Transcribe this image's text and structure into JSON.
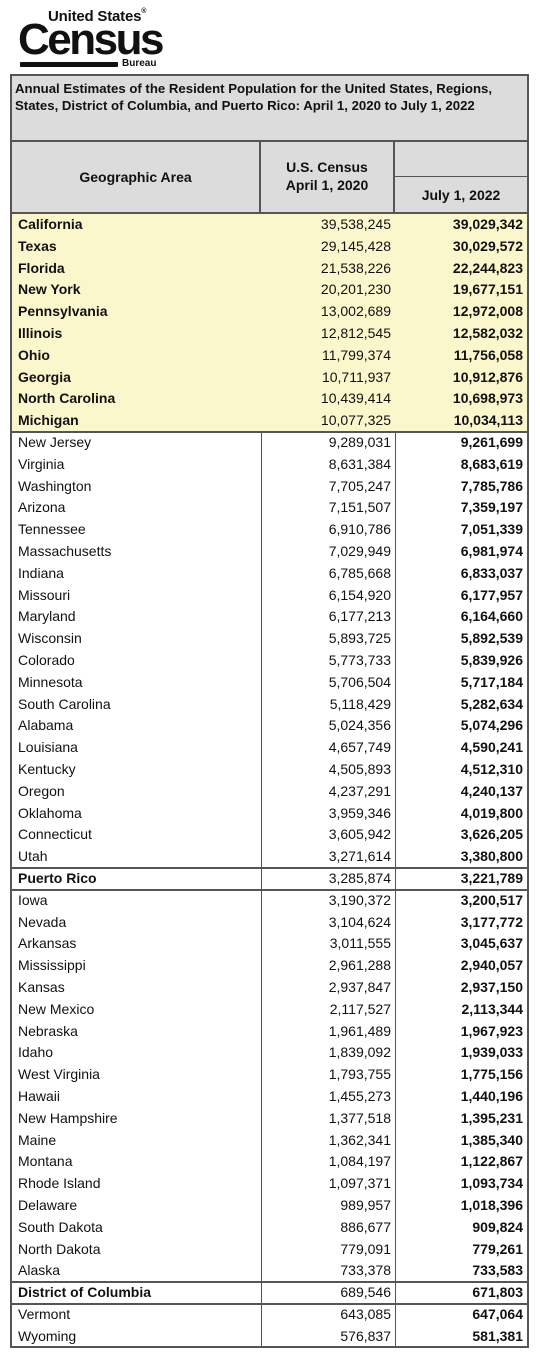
{
  "logo": {
    "line1": "United States",
    "reg": "®",
    "line2": "Census",
    "line3": "Bureau"
  },
  "table": {
    "title": "Annual Estimates of the Resident Population for the United States, Regions, States, District of Columbia, and Puerto Rico: April 1, 2020 to July 1, 2022",
    "headers": {
      "area": "Geographic Area",
      "census_line1": "U.S. Census",
      "census_line2": "April 1, 2020",
      "july": "July 1, 2022"
    },
    "rows": [
      {
        "name": "California",
        "census_2020": "39,538,245",
        "july_2022": "39,029,342",
        "group": "top10"
      },
      {
        "name": "Texas",
        "census_2020": "29,145,428",
        "july_2022": "30,029,572",
        "group": "top10"
      },
      {
        "name": "Florida",
        "census_2020": "21,538,226",
        "july_2022": "22,244,823",
        "group": "top10"
      },
      {
        "name": "New York",
        "census_2020": "20,201,230",
        "july_2022": "19,677,151",
        "group": "top10"
      },
      {
        "name": "Pennsylvania",
        "census_2020": "13,002,689",
        "july_2022": "12,972,008",
        "group": "top10"
      },
      {
        "name": "Illinois",
        "census_2020": "12,812,545",
        "july_2022": "12,582,032",
        "group": "top10"
      },
      {
        "name": "Ohio",
        "census_2020": "11,799,374",
        "july_2022": "11,756,058",
        "group": "top10"
      },
      {
        "name": "Georgia",
        "census_2020": "10,711,937",
        "july_2022": "10,912,876",
        "group": "top10"
      },
      {
        "name": "North Carolina",
        "census_2020": "10,439,414",
        "july_2022": "10,698,973",
        "group": "top10"
      },
      {
        "name": "Michigan",
        "census_2020": "10,077,325",
        "july_2022": "10,034,113",
        "group": "top10"
      },
      {
        "name": "New Jersey",
        "census_2020": "9,289,031",
        "july_2022": "9,261,699",
        "group": "state"
      },
      {
        "name": "Virginia",
        "census_2020": "8,631,384",
        "july_2022": "8,683,619",
        "group": "state"
      },
      {
        "name": "Washington",
        "census_2020": "7,705,247",
        "july_2022": "7,785,786",
        "group": "state"
      },
      {
        "name": "Arizona",
        "census_2020": "7,151,507",
        "july_2022": "7,359,197",
        "group": "state"
      },
      {
        "name": "Tennessee",
        "census_2020": "6,910,786",
        "july_2022": "7,051,339",
        "group": "state"
      },
      {
        "name": "Massachusetts",
        "census_2020": "7,029,949",
        "july_2022": "6,981,974",
        "group": "state"
      },
      {
        "name": "Indiana",
        "census_2020": "6,785,668",
        "july_2022": "6,833,037",
        "group": "state"
      },
      {
        "name": "Missouri",
        "census_2020": "6,154,920",
        "july_2022": "6,177,957",
        "group": "state"
      },
      {
        "name": "Maryland",
        "census_2020": "6,177,213",
        "july_2022": "6,164,660",
        "group": "state"
      },
      {
        "name": "Wisconsin",
        "census_2020": "5,893,725",
        "july_2022": "5,892,539",
        "group": "state"
      },
      {
        "name": "Colorado",
        "census_2020": "5,773,733",
        "july_2022": "5,839,926",
        "group": "state"
      },
      {
        "name": "Minnesota",
        "census_2020": "5,706,504",
        "july_2022": "5,717,184",
        "group": "state"
      },
      {
        "name": "South Carolina",
        "census_2020": "5,118,429",
        "july_2022": "5,282,634",
        "group": "state"
      },
      {
        "name": "Alabama",
        "census_2020": "5,024,356",
        "july_2022": "5,074,296",
        "group": "state"
      },
      {
        "name": "Louisiana",
        "census_2020": "4,657,749",
        "july_2022": "4,590,241",
        "group": "state"
      },
      {
        "name": "Kentucky",
        "census_2020": "4,505,893",
        "july_2022": "4,512,310",
        "group": "state"
      },
      {
        "name": "Oregon",
        "census_2020": "4,237,291",
        "july_2022": "4,240,137",
        "group": "state"
      },
      {
        "name": "Oklahoma",
        "census_2020": "3,959,346",
        "july_2022": "4,019,800",
        "group": "state"
      },
      {
        "name": "Connecticut",
        "census_2020": "3,605,942",
        "july_2022": "3,626,205",
        "group": "state"
      },
      {
        "name": "Utah",
        "census_2020": "3,271,614",
        "july_2022": "3,380,800",
        "group": "state"
      },
      {
        "name": "Puerto Rico",
        "census_2020": "3,285,874",
        "july_2022": "3,221,789",
        "group": "terr"
      },
      {
        "name": "Iowa",
        "census_2020": "3,190,372",
        "july_2022": "3,200,517",
        "group": "state"
      },
      {
        "name": "Nevada",
        "census_2020": "3,104,624",
        "july_2022": "3,177,772",
        "group": "state"
      },
      {
        "name": "Arkansas",
        "census_2020": "3,011,555",
        "july_2022": "3,045,637",
        "group": "state"
      },
      {
        "name": "Mississippi",
        "census_2020": "2,961,288",
        "july_2022": "2,940,057",
        "group": "state"
      },
      {
        "name": "Kansas",
        "census_2020": "2,937,847",
        "july_2022": "2,937,150",
        "group": "state"
      },
      {
        "name": "New Mexico",
        "census_2020": "2,117,527",
        "july_2022": "2,113,344",
        "group": "state"
      },
      {
        "name": "Nebraska",
        "census_2020": "1,961,489",
        "july_2022": "1,967,923",
        "group": "state"
      },
      {
        "name": "Idaho",
        "census_2020": "1,839,092",
        "july_2022": "1,939,033",
        "group": "state"
      },
      {
        "name": "West Virginia",
        "census_2020": "1,793,755",
        "july_2022": "1,775,156",
        "group": "state"
      },
      {
        "name": "Hawaii",
        "census_2020": "1,455,273",
        "july_2022": "1,440,196",
        "group": "state"
      },
      {
        "name": "New Hampshire",
        "census_2020": "1,377,518",
        "july_2022": "1,395,231",
        "group": "state"
      },
      {
        "name": "Maine",
        "census_2020": "1,362,341",
        "july_2022": "1,385,340",
        "group": "state"
      },
      {
        "name": "Montana",
        "census_2020": "1,084,197",
        "july_2022": "1,122,867",
        "group": "state"
      },
      {
        "name": "Rhode Island",
        "census_2020": "1,097,371",
        "july_2022": "1,093,734",
        "group": "state"
      },
      {
        "name": "Delaware",
        "census_2020": "989,957",
        "july_2022": "1,018,396",
        "group": "state"
      },
      {
        "name": "South Dakota",
        "census_2020": "886,677",
        "july_2022": "909,824",
        "group": "state"
      },
      {
        "name": "North Dakota",
        "census_2020": "779,091",
        "july_2022": "779,261",
        "group": "state"
      },
      {
        "name": "Alaska",
        "census_2020": "733,378",
        "july_2022": "733,583",
        "group": "state"
      },
      {
        "name": "District of Columbia",
        "census_2020": "689,546",
        "july_2022": "671,803",
        "group": "terr"
      },
      {
        "name": "Vermont",
        "census_2020": "643,085",
        "july_2022": "647,064",
        "group": "state"
      },
      {
        "name": "Wyoming",
        "census_2020": "576,837",
        "july_2022": "581,381",
        "group": "state"
      }
    ]
  },
  "colors": {
    "highlight": "#fbf7cc",
    "header_bg": "#dcdcdc",
    "border": "#555555"
  }
}
